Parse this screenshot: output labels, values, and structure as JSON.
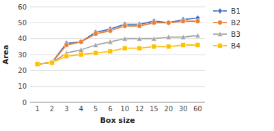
{
  "chart_data": {
    "type": "line",
    "x_label": "Box size",
    "y_label": "Area",
    "categories": [
      "1",
      "2",
      "3",
      "4",
      "5",
      "6",
      "10",
      "12",
      "15",
      "20",
      "30",
      "60"
    ],
    "series": [
      {
        "name": "B1",
        "color": "#4472C4",
        "marker": "diamond",
        "values": [
          24,
          25,
          37,
          38,
          44,
          46,
          49,
          49,
          51,
          50,
          52,
          53
        ]
      },
      {
        "name": "B2",
        "color": "#ED7D31",
        "marker": "circle",
        "values": [
          24,
          25,
          36,
          38,
          43,
          45,
          48,
          48,
          50,
          50,
          51,
          51
        ]
      },
      {
        "name": "B3",
        "color": "#A5A5A5",
        "marker": "triangle",
        "values": [
          24,
          25,
          31,
          33,
          36,
          38,
          40,
          40,
          40,
          41,
          41,
          42
        ]
      },
      {
        "name": "B4",
        "color": "#FFC000",
        "marker": "square",
        "values": [
          24,
          25,
          29,
          30,
          31,
          32,
          34,
          34,
          35,
          35,
          36,
          36
        ]
      }
    ],
    "ylim": [
      0,
      60
    ],
    "yticks": [
      0,
      10,
      20,
      30,
      40,
      50,
      60
    ],
    "grid": true,
    "legend": "right"
  }
}
